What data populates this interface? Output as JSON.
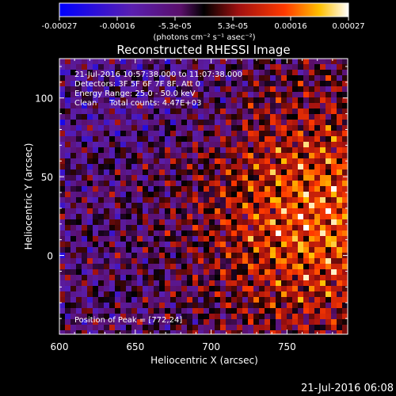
{
  "colorbar": {
    "tick_labels": [
      "-0.00027",
      "-0.00016",
      "-5.3e-05",
      "5.3e-05",
      "0.00016",
      "0.00027"
    ],
    "unit_label": "(photons cm⁻² s⁻¹ asec⁻²)",
    "range": [
      -0.00027,
      0.00027
    ]
  },
  "chart_data": {
    "type": "heatmap",
    "title": "Reconstructed RHESSI Image",
    "xlabel": "Heliocentric X (arcsec)",
    "ylabel": "Heliocentric Y (arcsec)",
    "xlim": [
      600,
      790
    ],
    "ylim": [
      -50,
      125
    ],
    "x_ticks": [
      "600",
      "650",
      "700",
      "750"
    ],
    "x_tick_values": [
      600,
      650,
      700,
      750
    ],
    "y_ticks": [
      "0",
      "50",
      "100"
    ],
    "y_tick_values": [
      0,
      50,
      100
    ],
    "colormap": "blue-purple-red-yellow-white",
    "annotations": [
      "21-Jul-2016 10:57:38.000 to 11:07:38.000",
      "Detectors: 3F 5F 6F 7F 8F, Att 0",
      "Energy Range: 25.0 - 50.0 keV",
      "Clean     Total counts: 4.47E+03"
    ],
    "peak_label": "Position of Peak = [772,24]",
    "peak_position": [
      772,
      24
    ]
  },
  "timestamp": "21-Jul-2016 06:08"
}
